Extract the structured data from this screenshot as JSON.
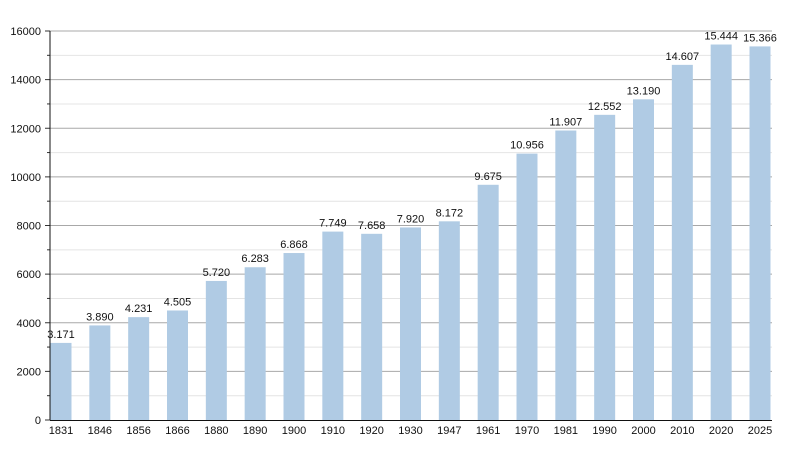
{
  "chart_data": {
    "type": "bar",
    "title": "",
    "xlabel": "",
    "ylabel": "",
    "ylim": [
      0,
      16000
    ],
    "yticks": [
      0,
      2000,
      4000,
      6000,
      8000,
      10000,
      12000,
      14000,
      16000
    ],
    "grid": true,
    "legend": "none",
    "bar_color": "#b0cbe4",
    "categories": [
      "1831",
      "1846",
      "1856",
      "1866",
      "1880",
      "1890",
      "1900",
      "1910",
      "1920",
      "1930",
      "1947",
      "1961",
      "1970",
      "1981",
      "1990",
      "2000",
      "2010",
      "2020",
      "2025"
    ],
    "values": [
      3171,
      3890,
      4231,
      4505,
      5720,
      6283,
      6868,
      7749,
      7658,
      7920,
      8172,
      9675,
      10956,
      11907,
      12552,
      13190,
      14607,
      15444,
      15366
    ],
    "data_labels": [
      "3.171",
      "3.890",
      "4.231",
      "4.505",
      "5.720",
      "6.283",
      "6.868",
      "7.749",
      "7.658",
      "7.920",
      "8.172",
      "9.675",
      "10.956",
      "11.907",
      "12.552",
      "13.190",
      "14.607",
      "15.444",
      "15.366"
    ]
  }
}
